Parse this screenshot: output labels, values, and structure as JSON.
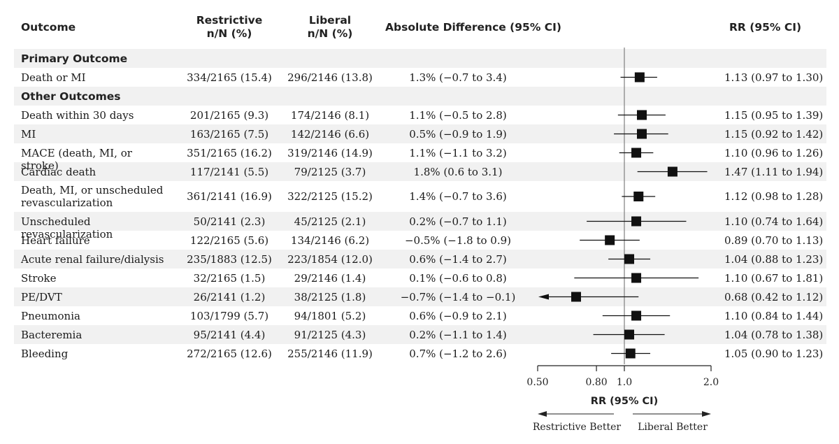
{
  "headers": {
    "outcome": "Outcome",
    "restrictive_1": "Restrictive",
    "restrictive_2": "n/N (%)",
    "liberal_1": "Liberal",
    "liberal_2": "n/N (%)",
    "abs_diff": "Absolute Difference (95% CI)",
    "rr": "RR (95% CI)"
  },
  "sections": {
    "primary": "Primary Outcome",
    "other": "Other Outcomes"
  },
  "rows": [
    {
      "outcome": "Death or MI",
      "restrictive": "334/2165 (15.4)",
      "liberal": "296/2146 (13.8)",
      "abs_diff": "1.3% (−0.7 to 3.4)",
      "rr_text": "1.13 (0.97 to 1.30)"
    },
    {
      "outcome": "Death within 30 days",
      "restrictive": "201/2165 (9.3)",
      "liberal": "174/2146 (8.1)",
      "abs_diff": "1.1% (−0.5 to 2.8)",
      "rr_text": "1.15 (0.95 to 1.39)"
    },
    {
      "outcome": "MI",
      "restrictive": "163/2165 (7.5)",
      "liberal": "142/2146 (6.6)",
      "abs_diff": "0.5% (−0.9 to 1.9)",
      "rr_text": "1.15 (0.92 to 1.42)"
    },
    {
      "outcome": "MACE (death, MI, or stroke)",
      "restrictive": "351/2165 (16.2)",
      "liberal": "319/2146 (14.9)",
      "abs_diff": "1.1% (−1.1 to 3.2)",
      "rr_text": "1.10 (0.96 to 1.26)"
    },
    {
      "outcome": "Cardiac death",
      "restrictive": "117/2141 (5.5)",
      "liberal": "79/2125 (3.7)",
      "abs_diff": "1.8% (0.6 to 3.1)",
      "rr_text": "1.47 (1.11 to 1.94)"
    },
    {
      "outcome": "Death, MI, or unscheduled revascularization",
      "restrictive": "361/2141 (16.9)",
      "liberal": "322/2125 (15.2)",
      "abs_diff": "1.4% (−0.7 to 3.6)",
      "rr_text": "1.12 (0.98 to 1.28)"
    },
    {
      "outcome": "Unscheduled revascularization",
      "restrictive": "50/2141 (2.3)",
      "liberal": "45/2125 (2.1)",
      "abs_diff": "0.2% (−0.7 to 1.1)",
      "rr_text": "1.10 (0.74 to 1.64)"
    },
    {
      "outcome": "Heart failure",
      "restrictive": "122/2165 (5.6)",
      "liberal": "134/2146 (6.2)",
      "abs_diff": "−0.5% (−1.8 to 0.9)",
      "rr_text": "0.89 (0.70 to 1.13)"
    },
    {
      "outcome": "Acute renal failure/dialysis",
      "restrictive": "235/1883 (12.5)",
      "liberal": "223/1854 (12.0)",
      "abs_diff": "0.6% (−1.4 to 2.7)",
      "rr_text": "1.04 (0.88 to 1.23)"
    },
    {
      "outcome": "Stroke",
      "restrictive": "32/2165 (1.5)",
      "liberal": "29/2146 (1.4)",
      "abs_diff": "0.1% (−0.6 to 0.8)",
      "rr_text": "1.10 (0.67 to 1.81)"
    },
    {
      "outcome": "PE/DVT",
      "restrictive": "26/2141 (1.2)",
      "liberal": "38/2125 (1.8)",
      "abs_diff": "−0.7% (−1.4 to −0.1)",
      "rr_text": "0.68 (0.42 to 1.12)"
    },
    {
      "outcome": "Pneumonia",
      "restrictive": "103/1799 (5.7)",
      "liberal": "94/1801 (5.2)",
      "abs_diff": "0.6% (−0.9 to 2.1)",
      "rr_text": "1.10 (0.84 to 1.44)"
    },
    {
      "outcome": "Bacteremia",
      "restrictive": "95/2141 (4.4)",
      "liberal": "91/2125 (4.3)",
      "abs_diff": "0.2% (−1.1 to 1.4)",
      "rr_text": "1.04 (0.78 to 1.38)"
    },
    {
      "outcome": "Bleeding",
      "restrictive": "272/2165 (12.6)",
      "liberal": "255/2146 (11.9)",
      "abs_diff": "0.7% (−1.2 to 2.6)",
      "rr_text": "1.05 (0.90 to 1.23)"
    }
  ],
  "chart_data": {
    "type": "forest",
    "title": "",
    "xlabel": "RR (95% CI)",
    "scale": "log",
    "xlim": [
      0.5,
      2.0
    ],
    "reference_line": 1.0,
    "xticks": [
      0.5,
      0.8,
      1.0,
      2.0
    ],
    "xtick_labels": [
      "0.50",
      "0.80",
      "1.0",
      "2.0"
    ],
    "direction_left": "Restrictive Better",
    "direction_right": "Liberal Better",
    "series": [
      {
        "name": "Death or MI",
        "rr": 1.13,
        "lo": 0.97,
        "hi": 1.3
      },
      {
        "name": "Death within 30 days",
        "rr": 1.15,
        "lo": 0.95,
        "hi": 1.39
      },
      {
        "name": "MI",
        "rr": 1.15,
        "lo": 0.92,
        "hi": 1.42
      },
      {
        "name": "MACE (death, MI, or stroke)",
        "rr": 1.1,
        "lo": 0.96,
        "hi": 1.26
      },
      {
        "name": "Cardiac death",
        "rr": 1.47,
        "lo": 1.11,
        "hi": 1.94
      },
      {
        "name": "Death, MI, or unscheduled revascularization",
        "rr": 1.12,
        "lo": 0.98,
        "hi": 1.28
      },
      {
        "name": "Unscheduled revascularization",
        "rr": 1.1,
        "lo": 0.74,
        "hi": 1.64
      },
      {
        "name": "Heart failure",
        "rr": 0.89,
        "lo": 0.7,
        "hi": 1.13
      },
      {
        "name": "Acute renal failure/dialysis",
        "rr": 1.04,
        "lo": 0.88,
        "hi": 1.23
      },
      {
        "name": "Stroke",
        "rr": 1.1,
        "lo": 0.67,
        "hi": 1.81
      },
      {
        "name": "PE/DVT",
        "rr": 0.68,
        "lo": 0.42,
        "hi": 1.12
      },
      {
        "name": "Pneumonia",
        "rr": 1.1,
        "lo": 0.84,
        "hi": 1.44
      },
      {
        "name": "Bacteremia",
        "rr": 1.04,
        "lo": 0.78,
        "hi": 1.38
      },
      {
        "name": "Bleeding",
        "rr": 1.05,
        "lo": 0.9,
        "hi": 1.23
      }
    ]
  }
}
